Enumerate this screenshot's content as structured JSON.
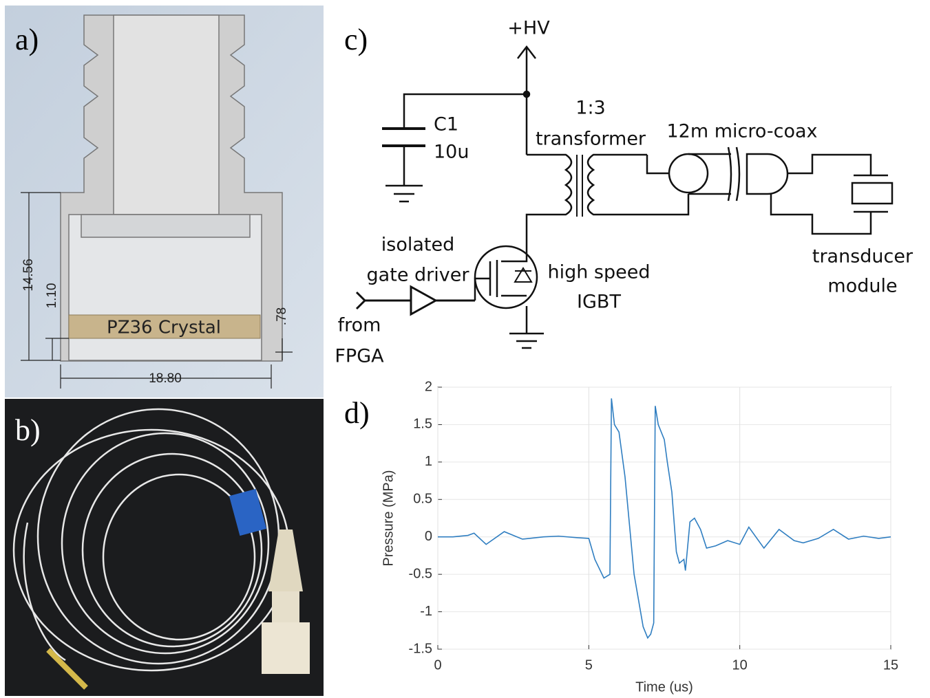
{
  "figure": {
    "panel_labels": [
      "a)",
      "b)",
      "c)",
      "d)"
    ],
    "panel_a": {
      "dim_height": "14.56",
      "dim_inner": "1.10",
      "dim_crystal": ".78",
      "dim_width": "18.80",
      "crystal_label": "PZ36 Crystal"
    },
    "panel_c": {
      "supply": "+HV",
      "cap_name": "C1",
      "cap_value": "10u",
      "ratio": "1:3",
      "transformer": "transformer",
      "cable": "12m micro-coax",
      "driver_line1": "isolated",
      "driver_line2": "gate driver",
      "switch_line1": "high speed",
      "switch_line2": "IGBT",
      "input_line1": "from",
      "input_line2": "FPGA",
      "load_line1": "transducer",
      "load_line2": "module"
    }
  },
  "chart_data": {
    "type": "line",
    "x_label": "Time (us)",
    "y_label": "Pressure (MPa)",
    "xlim": [
      0,
      15
    ],
    "ylim": [
      -1.5,
      2
    ],
    "xticks": [
      0,
      5,
      10,
      15
    ],
    "yticks": [
      -1.5,
      -1,
      -0.5,
      0,
      0.5,
      1,
      1.5,
      2
    ],
    "grid": true,
    "series": [
      {
        "color": "#2f7ec1",
        "x": [
          0,
          0.5,
          1,
          1.2,
          1.6,
          2.2,
          2.8,
          3.5,
          4.0,
          4.6,
          5.0,
          5.2,
          5.5,
          5.7,
          5.75,
          5.85,
          6.0,
          6.2,
          6.5,
          6.8,
          6.95,
          7.05,
          7.15,
          7.2,
          7.3,
          7.5,
          7.6,
          7.75,
          7.9,
          8.0,
          8.15,
          8.2,
          8.35,
          8.5,
          8.7,
          8.9,
          9.2,
          9.6,
          10.0,
          10.3,
          10.8,
          11.3,
          11.8,
          12.1,
          12.6,
          13.1,
          13.6,
          14.1,
          14.6,
          15
        ],
        "values": [
          0,
          0,
          0.02,
          0.05,
          -0.1,
          0.07,
          -0.03,
          0,
          0.01,
          -0.01,
          -0.02,
          -0.3,
          -0.55,
          -0.5,
          1.85,
          1.5,
          1.4,
          0.8,
          -0.5,
          -1.2,
          -1.35,
          -1.3,
          -1.15,
          1.75,
          1.5,
          1.3,
          1.0,
          0.6,
          -0.2,
          -0.35,
          -0.3,
          -0.45,
          0.2,
          0.25,
          0.1,
          -0.15,
          -0.12,
          -0.05,
          -0.1,
          0.13,
          -0.15,
          0.1,
          -0.05,
          -0.08,
          -0.02,
          0.1,
          -0.03,
          0.01,
          -0.02,
          0
        ]
      }
    ]
  }
}
